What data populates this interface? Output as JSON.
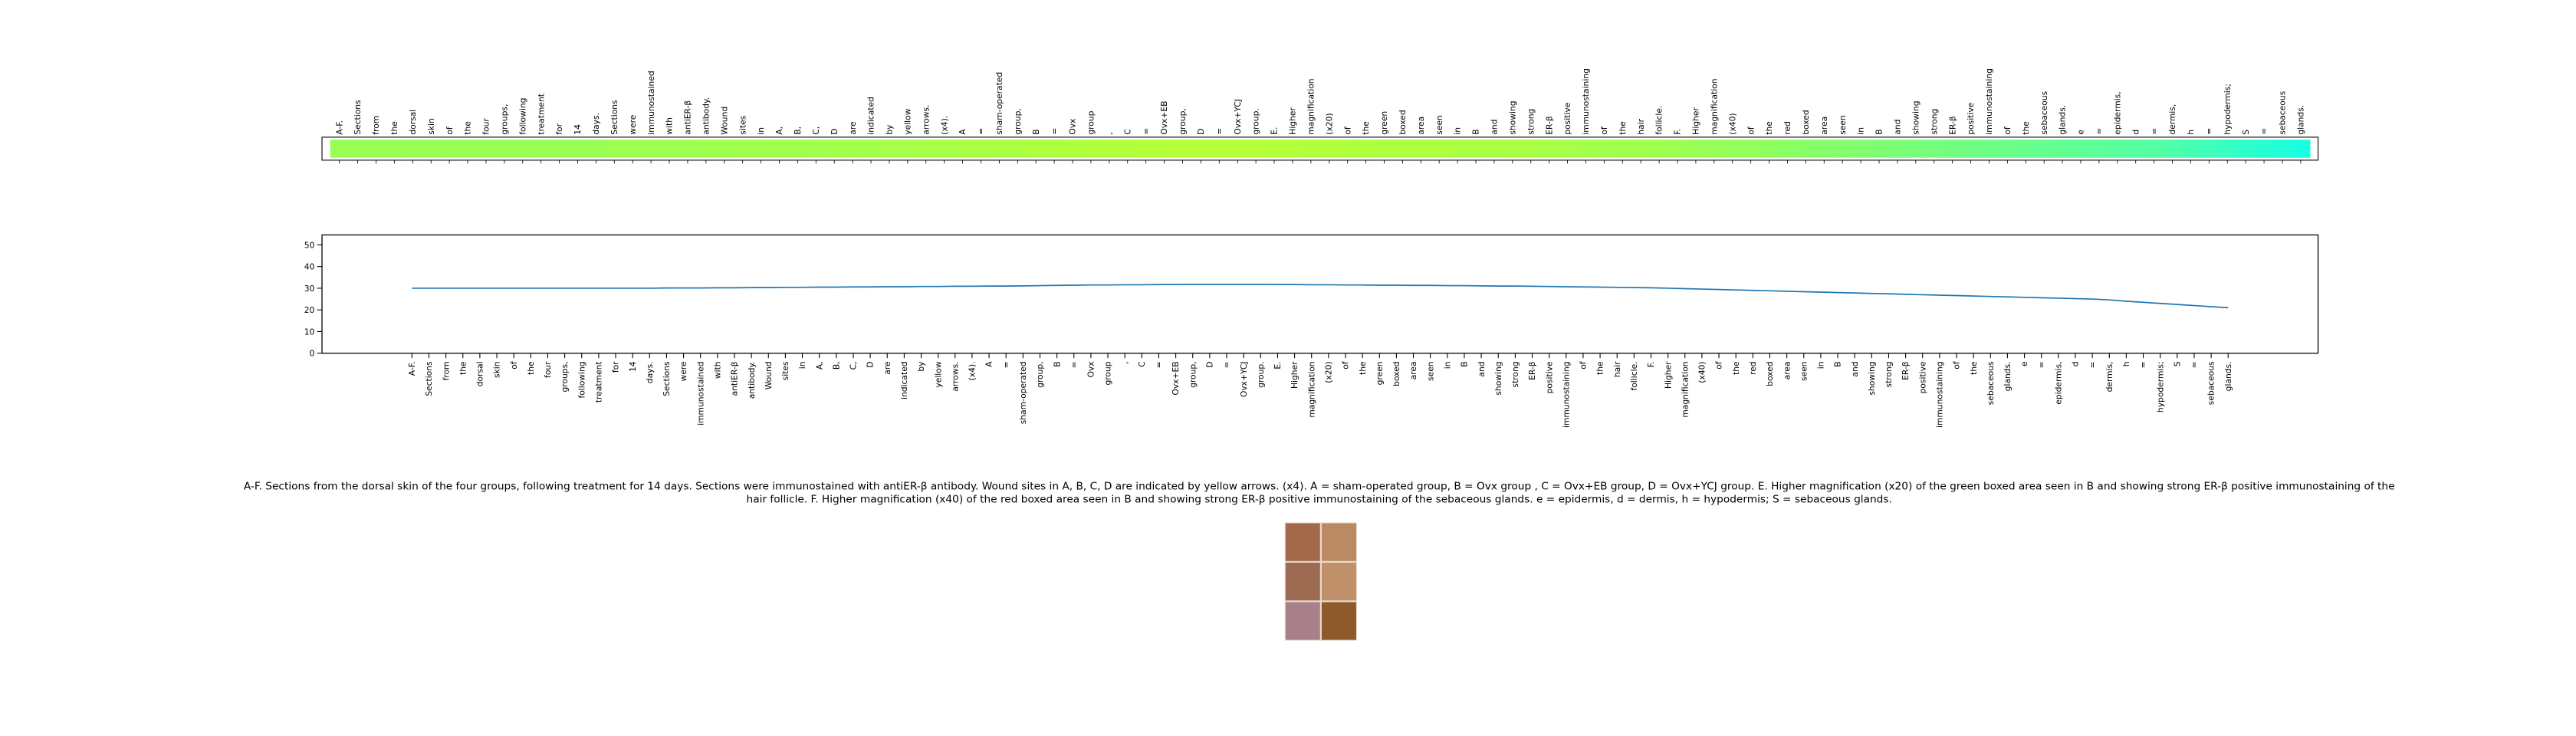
{
  "chart_data": {
    "type": "line",
    "categories": [
      "A-F.",
      "Sections",
      "from",
      "the",
      "dorsal",
      "skin",
      "of",
      "the",
      "four",
      "groups,",
      "following",
      "treatment",
      "for",
      "14",
      "days.",
      "Sections",
      "were",
      "immunostained",
      "with",
      "antiER-β",
      "antibody.",
      "Wound",
      "sites",
      "in",
      "A,",
      "B,",
      "C,",
      "D",
      "are",
      "indicated",
      "by",
      "yellow",
      "arrows.",
      "(x4).",
      "A",
      "=",
      "sham-operated",
      "group,",
      "B",
      "=",
      "Ovx",
      "group",
      ",",
      "C",
      "=",
      "Ovx+EB",
      "group,",
      "D",
      "=",
      "Ovx+YCJ",
      "group.",
      "E.",
      "Higher",
      "magnification",
      "(x20)",
      "of",
      "the",
      "green",
      "boxed",
      "area",
      "seen",
      "in",
      "B",
      "and",
      "showing",
      "strong",
      "ER-β",
      "positive",
      "immunostaining",
      "of",
      "the",
      "hair",
      "follicle.",
      "F.",
      "Higher",
      "magnification",
      "(x40)",
      "of",
      "the",
      "red",
      "boxed",
      "area",
      "seen",
      "in",
      "B",
      "and",
      "showing",
      "strong",
      "ER-β",
      "positive",
      "immunostaining",
      "of",
      "the",
      "sebaceous",
      "glands.",
      "e",
      "=",
      "epidermis,",
      "d",
      "=",
      "dermis,",
      "h",
      "=",
      "hypodermis;",
      "S",
      "=",
      "sebaceous",
      "glands."
    ],
    "values": [
      30.0,
      30.0,
      30.0,
      30.0,
      30.0,
      30.0,
      30.0,
      30.0,
      30.0,
      30.0,
      30.0,
      30.0,
      30.0,
      30.0,
      30.0,
      30.1,
      30.1,
      30.1,
      30.2,
      30.2,
      30.3,
      30.3,
      30.4,
      30.4,
      30.5,
      30.5,
      30.6,
      30.6,
      30.7,
      30.7,
      30.8,
      30.8,
      30.9,
      30.9,
      31.0,
      31.0,
      31.1,
      31.2,
      31.3,
      31.4,
      31.5,
      31.5,
      31.6,
      31.6,
      31.7,
      31.7,
      31.8,
      31.8,
      31.8,
      31.8,
      31.8,
      31.7,
      31.7,
      31.6,
      31.6,
      31.5,
      31.5,
      31.4,
      31.4,
      31.3,
      31.3,
      31.2,
      31.2,
      31.1,
      31.0,
      31.0,
      30.9,
      30.8,
      30.7,
      30.6,
      30.5,
      30.4,
      30.3,
      30.2,
      30.0,
      29.8,
      29.6,
      29.4,
      29.2,
      29.0,
      28.8,
      28.6,
      28.4,
      28.2,
      28.0,
      27.8,
      27.6,
      27.4,
      27.2,
      27.0,
      26.8,
      26.6,
      26.4,
      26.2,
      26.0,
      25.8,
      25.6,
      25.4,
      25.2,
      25.0,
      24.6,
      24.0,
      23.5,
      23.0,
      22.5,
      22.0,
      21.5,
      21.0
    ],
    "color": "#1f77b4",
    "strip_colormap": [
      "#1affe0",
      "#b4ff38"
    ],
    "xlim": [
      -5.3,
      112.3
    ],
    "ylim": [
      0,
      54.6
    ],
    "yticks": [
      0,
      10,
      20,
      30,
      40,
      50
    ]
  },
  "caption_lines": [
    "A-F. Sections from the dorsal skin of the four groups, following treatment for 14 days. Sections were immunostained with antiER-β antibody. Wound sites in A, B, C, D are indicated by yellow arrows. (x4). A = sham-operated group, B = Ovx group , C = Ovx+EB group, D = Ovx+YCJ group. E. Higher magnification (x20) of the green boxed area seen in B and showing strong ER-β positive immunostaining of the",
    "hair follicle. F. Higher magnification (x40) of the red boxed area seen in B and showing strong ER-β positive immunostaining of the sebaceous glands. e = epidermis, d = dermis, h = hypodermis; S = sebaceous glands."
  ]
}
